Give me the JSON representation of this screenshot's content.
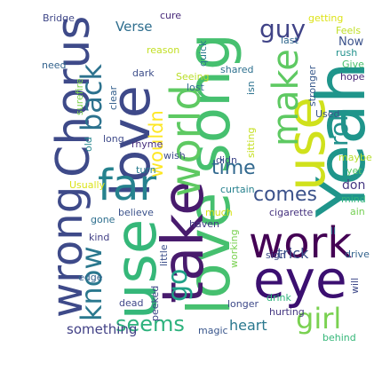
{
  "words": [
    {
      "id": "love-song",
      "text": "love song",
      "color": "#46c06f"
    },
    {
      "id": "yeah",
      "text": "Yeah",
      "color": "#1f958b"
    },
    {
      "id": "use-1",
      "text": "use",
      "color": "#35b779"
    },
    {
      "id": "use-2",
      "text": "use",
      "color": "#d0e11c"
    },
    {
      "id": "take",
      "text": "take",
      "color": "#481b6d"
    },
    {
      "id": "work",
      "text": "work",
      "color": "#440154"
    },
    {
      "id": "eye",
      "text": "eye",
      "color": "#3b0f70"
    },
    {
      "id": "love",
      "text": "love",
      "color": "#3e4989"
    },
    {
      "id": "chorus",
      "text": "Chorus",
      "color": "#3e4a89"
    },
    {
      "id": "world",
      "text": "world",
      "color": "#5ec962"
    },
    {
      "id": "far",
      "text": "far",
      "color": "#26828e"
    },
    {
      "id": "wrong",
      "text": "wrong",
      "color": "#3e4a89"
    },
    {
      "id": "make",
      "text": "make",
      "color": "#5ec962"
    },
    {
      "id": "girl",
      "text": "girl",
      "color": "#7ad151"
    },
    {
      "id": "back",
      "text": "back",
      "color": "#2c728e"
    },
    {
      "id": "know",
      "text": "know",
      "color": "#2a788e"
    },
    {
      "id": "go",
      "text": "go",
      "color": "#1fa187"
    },
    {
      "id": "time",
      "text": "time",
      "color": "#31688e"
    },
    {
      "id": "comes",
      "text": "comes",
      "color": "#3b528b"
    },
    {
      "id": "guy",
      "text": "guy",
      "color": "#404387"
    },
    {
      "id": "roll",
      "text": "roll",
      "color": "#21918c"
    },
    {
      "id": "seems",
      "text": "seems",
      "color": "#2db27d"
    },
    {
      "id": "wouldn",
      "text": "wouldn",
      "color": "#fde725"
    },
    {
      "id": "trick",
      "text": "trick",
      "color": "#3b528b"
    },
    {
      "id": "something",
      "text": "something",
      "color": "#424186"
    },
    {
      "id": "heart",
      "text": "heart",
      "color": "#2a788e"
    },
    {
      "id": "verse",
      "text": "Verse",
      "color": "#2e6e8e"
    },
    {
      "id": "cure",
      "text": "cure",
      "color": "#482979"
    },
    {
      "id": "bridge",
      "text": "Bridge",
      "color": "#3f4788"
    },
    {
      "id": "need",
      "text": "need",
      "color": "#33638d"
    },
    {
      "id": "getting",
      "text": "getting",
      "color": "#dde318"
    },
    {
      "id": "feels",
      "text": "Feels",
      "color": "#c0df25"
    },
    {
      "id": "rush",
      "text": "rush",
      "color": "#21918c"
    },
    {
      "id": "now",
      "text": "Now",
      "color": "#3b528b"
    },
    {
      "id": "give",
      "text": "Give",
      "color": "#4ac16d"
    },
    {
      "id": "hope",
      "text": "hope",
      "color": "#482878"
    },
    {
      "id": "last",
      "text": "last",
      "color": "#31688e"
    },
    {
      "id": "reason",
      "text": "reason",
      "color": "#c2df23"
    },
    {
      "id": "quick",
      "text": "quick",
      "color": "#2a788e"
    },
    {
      "id": "shared",
      "text": "shared",
      "color": "#2d708e"
    },
    {
      "id": "stronger",
      "text": "stronger",
      "color": "#38598c"
    },
    {
      "id": "dark",
      "text": "dark",
      "color": "#3d4e8a"
    },
    {
      "id": "seeing",
      "text": "Seeing",
      "color": "#bade28"
    },
    {
      "id": "lost",
      "text": "lost",
      "color": "#30698e"
    },
    {
      "id": "surefire",
      "text": "surefire",
      "color": "#7fd34e"
    },
    {
      "id": "clear",
      "text": "clear",
      "color": "#34608d"
    },
    {
      "id": "isn",
      "text": "isn",
      "color": "#2c728e"
    },
    {
      "id": "used",
      "text": "Used",
      "color": "#3a548c"
    },
    {
      "id": "old",
      "text": "old",
      "color": "#24868e"
    },
    {
      "id": "long",
      "text": "long",
      "color": "#3e4a89"
    },
    {
      "id": "rhyme",
      "text": "rhyme",
      "color": "#472f7d"
    },
    {
      "id": "sitting",
      "text": "sitting",
      "color": "#c5e021"
    },
    {
      "id": "wish",
      "text": "wish",
      "color": "#3e4c8a"
    },
    {
      "id": "maybe",
      "text": "maybe",
      "color": "#b5de2b"
    },
    {
      "id": "yet",
      "text": "yet",
      "color": "#5ac864"
    },
    {
      "id": "didn",
      "text": "didn",
      "color": "#3f4889"
    },
    {
      "id": "turn",
      "text": "turn",
      "color": "#287c8e"
    },
    {
      "id": "usually",
      "text": "Usually",
      "color": "#dae319"
    },
    {
      "id": "curtain",
      "text": "curtain",
      "color": "#26818e"
    },
    {
      "id": "don",
      "text": "don",
      "color": "#453882"
    },
    {
      "id": "mind",
      "text": "mind",
      "color": "#2fb47c"
    },
    {
      "id": "much",
      "text": "much",
      "color": "#d8e219"
    },
    {
      "id": "cigarette",
      "text": "cigarette",
      "color": "#46337f"
    },
    {
      "id": "ain",
      "text": "ain",
      "color": "#75d054"
    },
    {
      "id": "believe",
      "text": "believe",
      "color": "#3b528b"
    },
    {
      "id": "gone",
      "text": "gone",
      "color": "#2e6f8e"
    },
    {
      "id": "haven",
      "text": "haven",
      "color": "#433e85"
    },
    {
      "id": "ll",
      "text": "ll",
      "color": "#2c738e"
    },
    {
      "id": "kind",
      "text": "kind",
      "color": "#424086"
    },
    {
      "id": "little",
      "text": "little",
      "color": "#3c508b"
    },
    {
      "id": "working",
      "text": "working",
      "color": "#7ad151"
    },
    {
      "id": "sign",
      "text": "sign",
      "color": "#3e4a89"
    },
    {
      "id": "drive",
      "text": "drive",
      "color": "#33638d"
    },
    {
      "id": "edge",
      "text": "edge",
      "color": "#33638d"
    },
    {
      "id": "dead",
      "text": "dead",
      "color": "#3f4889"
    },
    {
      "id": "peeked",
      "text": "peeked",
      "color": "#3f4788"
    },
    {
      "id": "longer",
      "text": "longer",
      "color": "#3e4989"
    },
    {
      "id": "drink",
      "text": "drink",
      "color": "#2fb47c"
    },
    {
      "id": "will",
      "text": "will",
      "color": "#3e4989"
    },
    {
      "id": "hurting",
      "text": "hurting",
      "color": "#453781"
    },
    {
      "id": "magic",
      "text": "magic",
      "color": "#39568c"
    },
    {
      "id": "behind",
      "text": "behind",
      "color": "#35b779"
    }
  ]
}
